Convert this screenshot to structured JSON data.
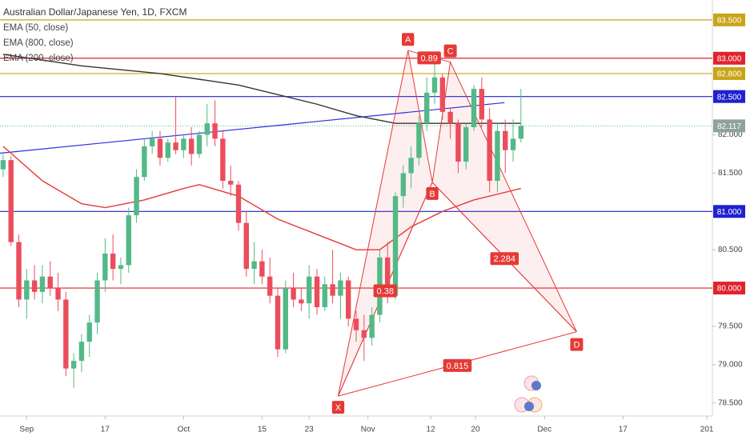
{
  "chart_data": {
    "type": "candlestick",
    "title": "Australian Dollar/Japanese Yen, 1D, FXCM",
    "xlim": [
      -0.4,
      90.4
    ],
    "ylim": [
      78.33,
      83.76
    ],
    "yticks": [
      {
        "value": 78.5,
        "label": "78.500"
      },
      {
        "value": 79.0,
        "label": "79.000"
      },
      {
        "value": 79.5,
        "label": "79.500"
      },
      {
        "value": 80.5,
        "label": "80.500"
      },
      {
        "value": 81.5,
        "label": "81.500"
      },
      {
        "value": 82.0,
        "label": "82.000"
      }
    ],
    "xticks": [
      {
        "value": 3,
        "label": "Sep"
      },
      {
        "value": 13,
        "label": "17"
      },
      {
        "value": 23,
        "label": "Oct"
      },
      {
        "value": 33,
        "label": "15"
      },
      {
        "value": 39,
        "label": "23"
      },
      {
        "value": 46.5,
        "label": "Nov"
      },
      {
        "value": 54.5,
        "label": "12"
      },
      {
        "value": 60.2,
        "label": "20"
      },
      {
        "value": 69,
        "label": "Dec"
      },
      {
        "value": 79,
        "label": "17"
      },
      {
        "value": 89.7,
        "label": "201"
      }
    ],
    "up_color": "#53b987",
    "down_color": "#eb4d5c",
    "open": [
      81.55,
      81.67,
      80.6,
      79.85,
      80.1,
      79.95,
      80.15,
      80.0,
      79.85,
      78.95,
      79.05,
      79.3,
      79.55,
      80.1,
      80.45,
      80.25,
      80.3,
      80.95,
      81.45,
      81.85,
      81.95,
      81.7,
      81.9,
      81.8,
      81.95,
      81.75,
      82.0,
      82.15,
      81.95,
      81.4,
      81.35,
      80.85,
      80.25,
      80.35,
      80.15,
      79.9,
      79.2,
      80.0,
      79.85,
      79.8,
      80.15,
      79.75,
      80.05,
      79.9,
      80.1,
      79.6,
      79.45,
      79.35,
      79.65,
      80.4,
      79.9,
      81.2,
      81.5,
      81.7,
      82.15,
      82.55,
      82.75,
      82.3,
      82.15,
      81.65,
      82.1,
      82.6,
      82.2,
      81.4,
      82.05,
      81.8,
      81.95
    ],
    "high": [
      81.75,
      81.72,
      80.7,
      80.25,
      80.3,
      80.3,
      80.35,
      80.2,
      79.95,
      79.15,
      79.4,
      79.65,
      80.2,
      80.65,
      80.7,
      80.4,
      81.05,
      81.55,
      81.95,
      82.05,
      82.05,
      81.95,
      82.5,
      82.0,
      82.1,
      82.05,
      82.4,
      82.45,
      82.05,
      81.6,
      81.4,
      81.0,
      80.6,
      80.5,
      80.4,
      80.0,
      80.1,
      80.2,
      80.0,
      80.3,
      80.25,
      80.15,
      80.5,
      80.2,
      80.15,
      79.7,
      79.65,
      79.75,
      80.5,
      80.6,
      81.25,
      81.6,
      81.85,
      82.25,
      82.75,
      82.95,
      82.8,
      82.35,
      82.2,
      82.15,
      82.65,
      82.75,
      82.35,
      82.15,
      82.2,
      82.2,
      82.6
    ],
    "low": [
      81.45,
      80.55,
      79.75,
      79.6,
      79.85,
      79.8,
      79.9,
      79.7,
      78.85,
      78.7,
      78.9,
      79.1,
      79.4,
      79.95,
      80.1,
      80.05,
      80.2,
      80.85,
      81.4,
      81.75,
      81.6,
      81.65,
      81.75,
      81.7,
      81.6,
      81.7,
      81.85,
      81.85,
      81.3,
      81.2,
      80.75,
      80.15,
      80.05,
      80.05,
      79.8,
      79.1,
      79.15,
      79.75,
      79.7,
      79.6,
      79.65,
      79.7,
      79.8,
      79.6,
      79.5,
      79.3,
      79.05,
      79.25,
      79.55,
      79.8,
      79.85,
      81.05,
      81.3,
      81.6,
      82.05,
      82.4,
      82.2,
      81.95,
      81.5,
      81.55,
      82.05,
      82.1,
      81.25,
      81.25,
      81.5,
      81.65,
      81.9
    ],
    "close": [
      81.67,
      80.6,
      79.85,
      80.1,
      79.95,
      80.15,
      80.0,
      79.85,
      78.95,
      79.05,
      79.3,
      79.55,
      80.1,
      80.45,
      80.25,
      80.3,
      80.95,
      81.45,
      81.85,
      81.95,
      81.7,
      81.9,
      81.8,
      81.95,
      81.75,
      82.0,
      82.15,
      81.95,
      81.4,
      81.35,
      80.85,
      80.25,
      80.35,
      80.15,
      79.9,
      79.2,
      80.0,
      79.85,
      79.8,
      80.15,
      79.75,
      80.05,
      79.9,
      80.1,
      79.6,
      79.45,
      79.35,
      79.65,
      80.4,
      79.9,
      81.2,
      81.5,
      81.7,
      82.15,
      82.55,
      82.75,
      82.3,
      82.15,
      81.65,
      82.1,
      82.6,
      82.2,
      81.4,
      82.05,
      81.8,
      81.95,
      82.117
    ],
    "levels": [
      {
        "value": 83.5,
        "label": "83.500",
        "color": "#c9a417"
      },
      {
        "value": 83.0,
        "label": "83.000",
        "color": "#e0232e"
      },
      {
        "value": 82.8,
        "label": "82.800",
        "color": "#c9a417"
      },
      {
        "value": 82.5,
        "label": "82.500",
        "color": "#2020d0"
      },
      {
        "value": 81.0,
        "label": "81.000",
        "color": "#2020d0"
      },
      {
        "value": 80.0,
        "label": "80.000",
        "color": "#e0232e"
      }
    ],
    "last_price": {
      "value": 82.117,
      "label": "82.117",
      "color": "#8fa39b"
    },
    "indicators": [
      {
        "name": "EMA (50, close)",
        "color": "#e53935",
        "x": [
          0,
          5,
          10,
          13,
          18,
          23,
          25,
          30,
          35,
          40,
          45,
          48,
          52,
          56,
          60,
          66
        ],
        "values": [
          81.85,
          81.4,
          81.1,
          81.05,
          81.15,
          81.3,
          81.35,
          81.2,
          80.9,
          80.7,
          80.5,
          80.5,
          80.8,
          81.0,
          81.15,
          81.3
        ]
      },
      {
        "name": "EMA (800, close)",
        "color": "#333333",
        "x": [
          0,
          10,
          20,
          30,
          40,
          45,
          50,
          56,
          66
        ],
        "values": [
          83.05,
          82.9,
          82.8,
          82.65,
          82.4,
          82.25,
          82.15,
          82.15,
          82.15
        ]
      },
      {
        "name": "EMA (200, close)"
      }
    ],
    "trendline": {
      "color": "#2a2ae0",
      "x": [
        -0.4,
        63.9
      ],
      "values": [
        81.76,
        82.42
      ]
    },
    "pattern": {
      "color": "#e53935",
      "points": [
        {
          "label": "X",
          "x": 42.7,
          "value": 78.59
        },
        {
          "label": "A",
          "x": 51.6,
          "value": 83.1
        },
        {
          "label": "B",
          "x": 54.7,
          "value": 81.38
        },
        {
          "label": "C",
          "x": 57.0,
          "value": 82.95
        },
        {
          "label": "D",
          "x": 73.1,
          "value": 79.43
        }
      ],
      "ratios": [
        0.89,
        0.38,
        2.284,
        0.815
      ]
    }
  }
}
